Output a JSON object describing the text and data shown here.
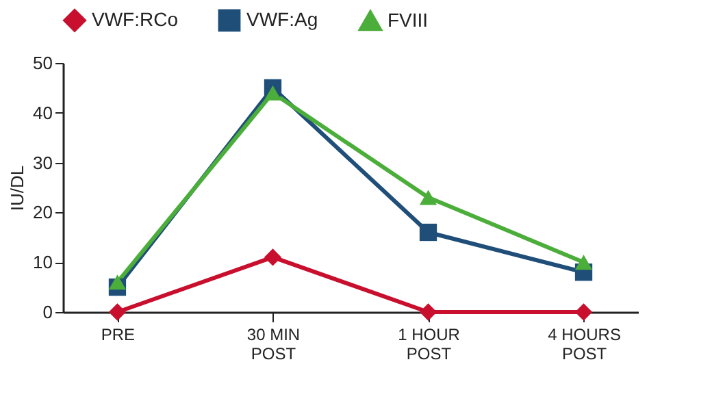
{
  "chart_data": {
    "type": "line",
    "ylabel": "IU/DL",
    "categories": [
      "PRE",
      "30 MIN\nPOST",
      "1 HOUR\nPOST",
      "4 HOURS\nPOST"
    ],
    "ylim": [
      0,
      50
    ],
    "yticks": [
      0,
      10,
      20,
      30,
      40,
      50
    ],
    "grid": false,
    "legend": "top",
    "line_style": "solid",
    "series": [
      {
        "name": "VWF:RCo",
        "color": "#c8102e",
        "marker": "diamond",
        "values": [
          0,
          11,
          0,
          0
        ]
      },
      {
        "name": "VWF:Ag",
        "color": "#1f4e79",
        "marker": "square",
        "values": [
          5,
          45,
          16,
          8
        ]
      },
      {
        "name": "FVIII",
        "color": "#4cae3a",
        "marker": "triangle",
        "values": [
          6,
          44,
          23,
          10
        ]
      }
    ]
  }
}
